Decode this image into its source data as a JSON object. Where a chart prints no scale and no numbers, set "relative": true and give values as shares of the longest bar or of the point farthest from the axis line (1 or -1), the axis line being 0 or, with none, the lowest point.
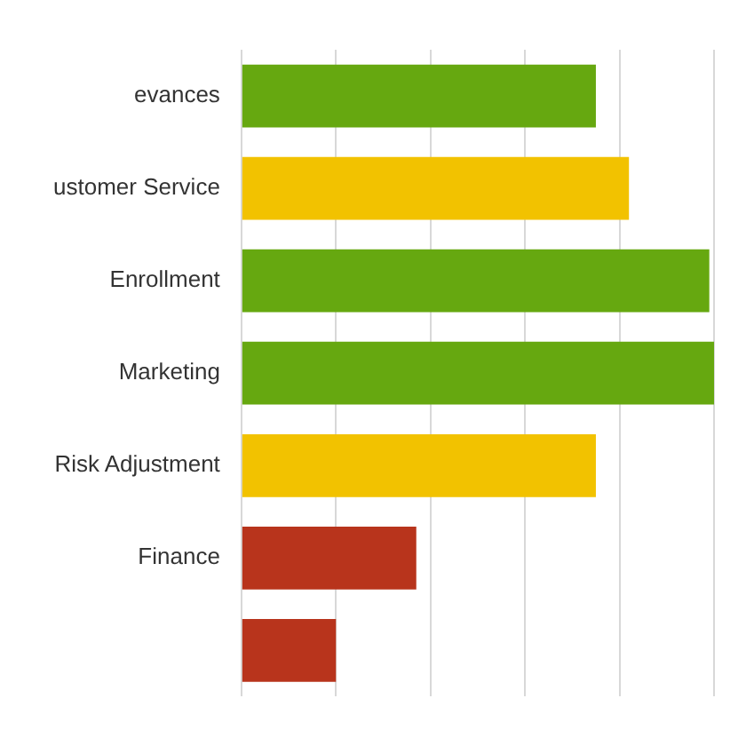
{
  "chart_data": {
    "type": "bar",
    "orientation": "horizontal",
    "relative": true,
    "grid": "x",
    "legend": false,
    "categories": [
      "evances",
      "ustomer Service",
      "Enrollment",
      "Marketing",
      "Risk Adjustment",
      "Finance",
      null
    ],
    "values": [
      0.75,
      0.82,
      0.99,
      1,
      0.75,
      0.37,
      0.2
    ],
    "colors": [
      "#66a810",
      "#f2c200",
      "#66a810",
      "#66a810",
      "#f2c200",
      "#b8341c",
      "#b8341c"
    ]
  }
}
